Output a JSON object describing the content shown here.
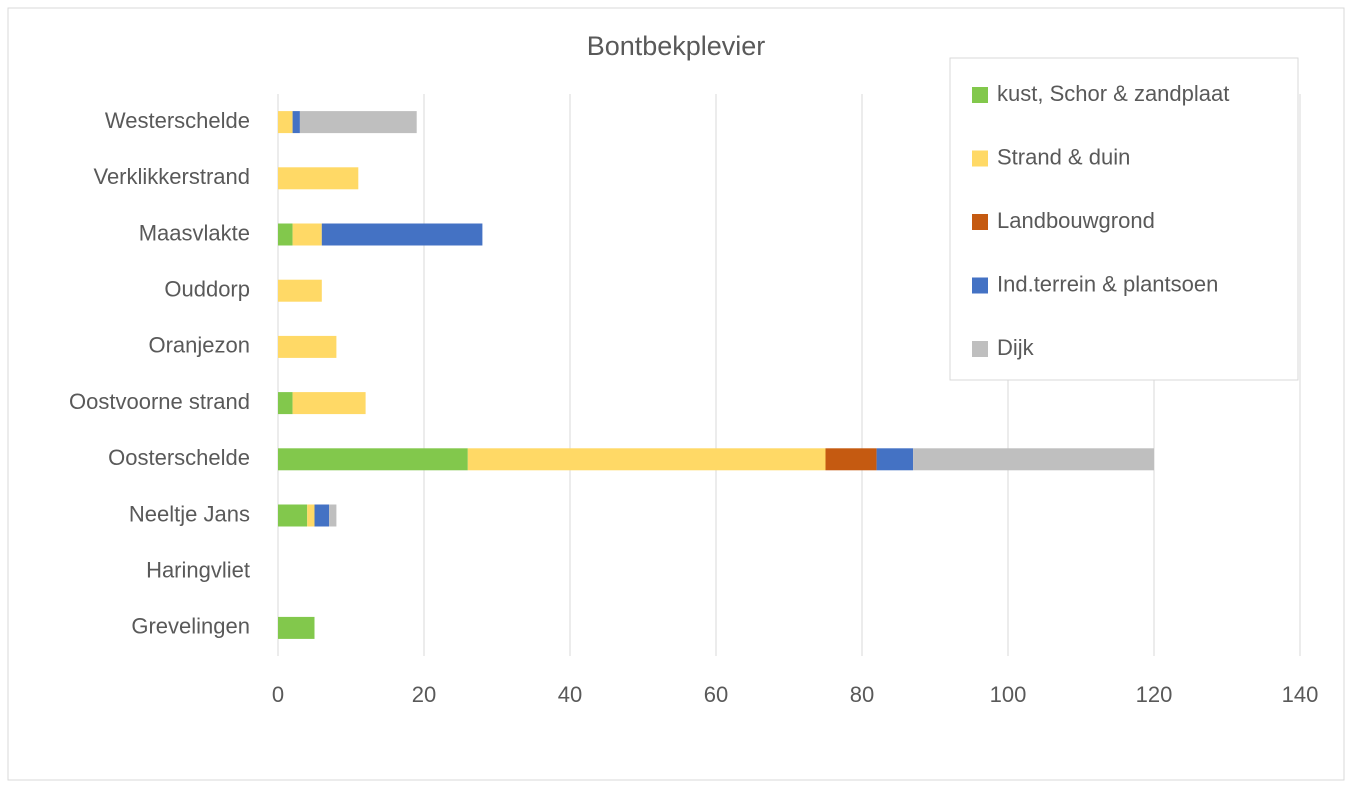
{
  "chart_data": {
    "type": "stacked_barh",
    "title": "Bontbekplevier",
    "categories": [
      "Westerschelde",
      "Verklikkerstrand",
      "Maasvlakte",
      "Ouddorp",
      "Oranjezon",
      "Oostvoorne strand",
      "Oosterschelde",
      "Neeltje Jans",
      "Haringvliet",
      "Grevelingen"
    ],
    "series": [
      {
        "name": "kust, Schor & zandplaat",
        "color": "#82c84c",
        "values": [
          0,
          0,
          2,
          0,
          0,
          2,
          26,
          4,
          0,
          5
        ]
      },
      {
        "name": "Strand & duin",
        "color": "#ffd966",
        "values": [
          2,
          11,
          4,
          6,
          8,
          10,
          49,
          1,
          0,
          0
        ]
      },
      {
        "name": "Landbouwgrond",
        "color": "#c55a11",
        "values": [
          0,
          0,
          0,
          0,
          0,
          0,
          7,
          0,
          0,
          0
        ]
      },
      {
        "name": "Ind.terrein & plantsoen",
        "color": "#4472c4",
        "values": [
          1,
          0,
          22,
          0,
          0,
          0,
          5,
          2,
          0,
          0
        ]
      },
      {
        "name": "Dijk",
        "color": "#bfbfbf",
        "values": [
          16,
          0,
          0,
          0,
          0,
          0,
          33,
          1,
          0,
          0
        ]
      }
    ],
    "xlim": [
      0,
      140
    ],
    "xticks": [
      0,
      20,
      40,
      60,
      80,
      100,
      120,
      140
    ],
    "grid": true,
    "legend": "upper right"
  }
}
